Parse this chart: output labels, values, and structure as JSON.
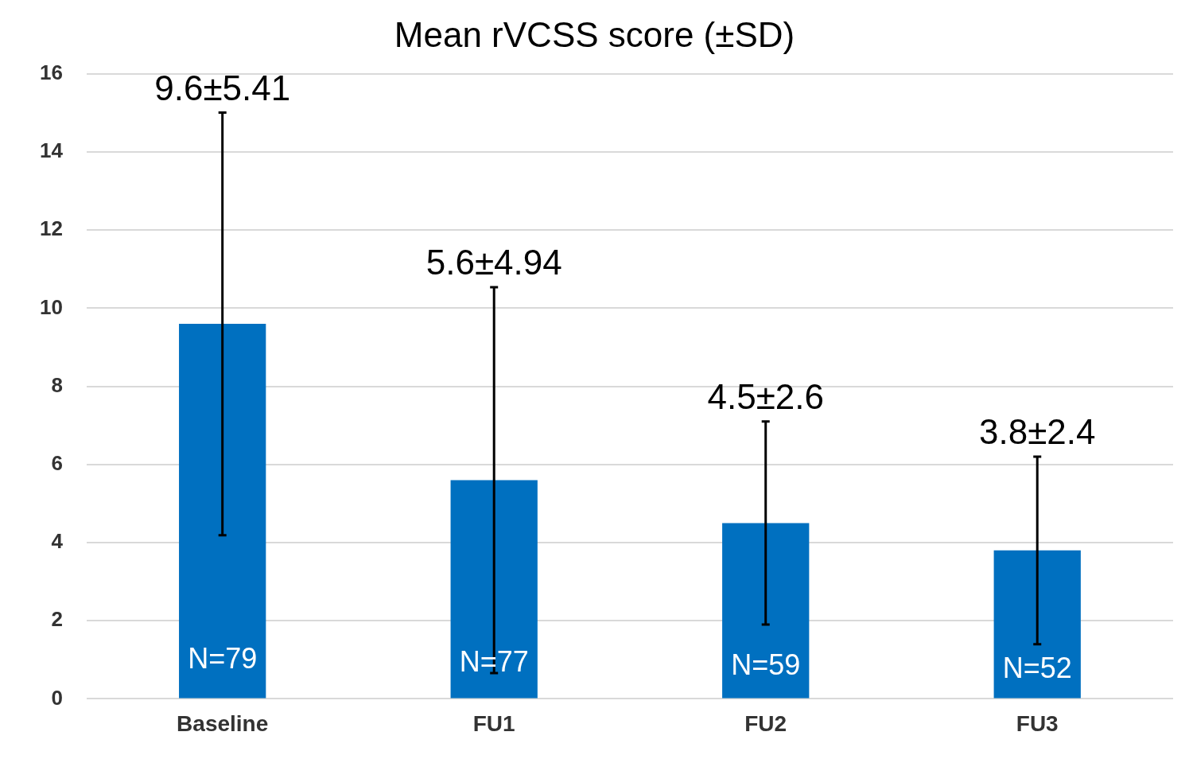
{
  "chart_data": {
    "type": "bar",
    "title": "Mean rVCSS score (±SD)",
    "categories": [
      "Baseline",
      "FU1",
      "FU2",
      "FU3"
    ],
    "values": [
      9.6,
      5.6,
      4.5,
      3.8
    ],
    "errors": [
      5.41,
      4.94,
      2.6,
      2.4
    ],
    "color": "#0070c0",
    "ylim": [
      0,
      16
    ],
    "yticks": [
      0,
      2,
      4,
      6,
      8,
      10,
      12,
      14,
      16
    ],
    "grid": "y",
    "legend": false,
    "annotations": [
      {
        "text": "9.6±5.41",
        "x": "Baseline",
        "y": 15.01
      },
      {
        "text": "5.6±4.94",
        "x": "FU1",
        "y": 10.54
      },
      {
        "text": "4.5±2.6",
        "x": "FU2",
        "y": 7.1
      },
      {
        "text": "3.8±2.4",
        "x": "FU3",
        "y": 6.2
      },
      "N=79",
      "N=77",
      "N=59",
      "N=52"
    ]
  }
}
